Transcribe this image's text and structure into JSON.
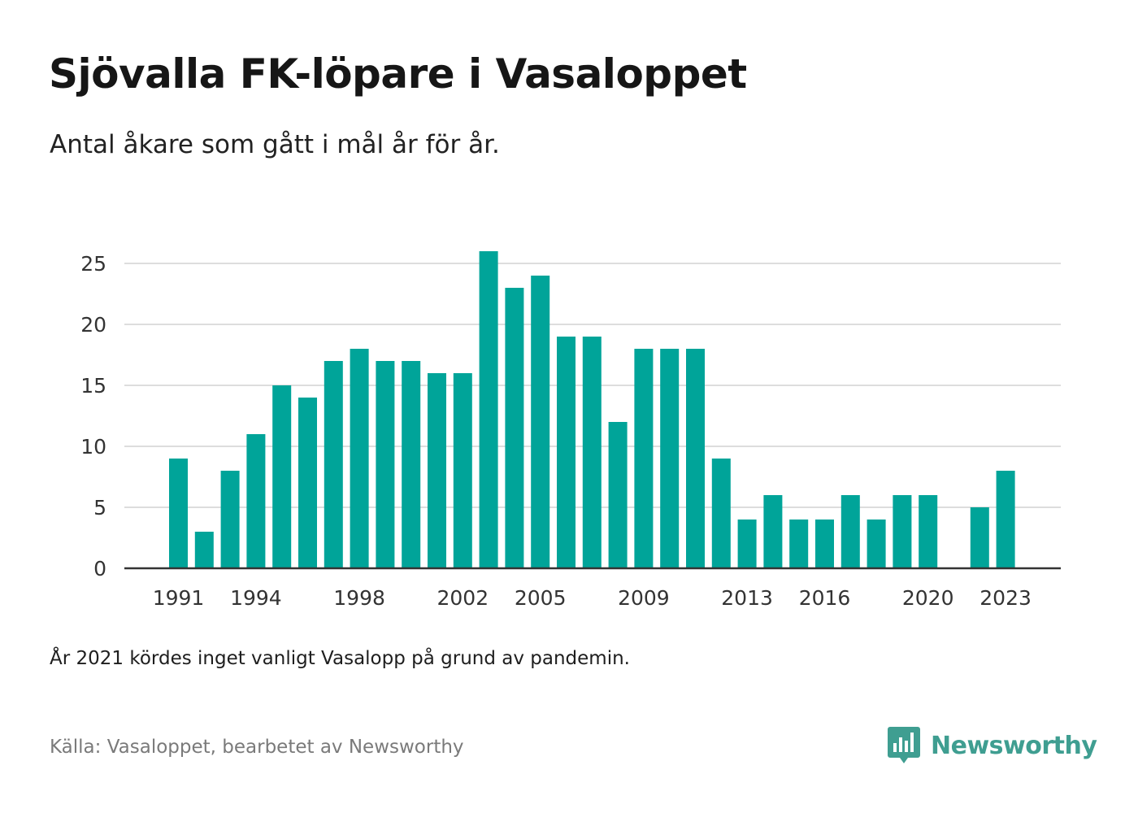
{
  "title": "Sjövalla FK-löpare i Vasaloppet",
  "subtitle": "Antal åkare som gått i mål år för år.",
  "note": "År 2021 kördes inget vanligt Vasalopp på grund av pandemin.",
  "source": "Källa: Vasaloppet, bearbetet av Newsworthy",
  "brand": {
    "name": "Newsworthy",
    "icon": "newsworthy-logo-icon",
    "color": "#3f9e91"
  },
  "colors": {
    "bar": "#00a499",
    "grid": "#dddddd",
    "axis": "#333333"
  },
  "chart_data": {
    "type": "bar",
    "x": [
      1991,
      1992,
      1993,
      1994,
      1995,
      1996,
      1997,
      1998,
      1999,
      2000,
      2001,
      2002,
      2003,
      2004,
      2005,
      2006,
      2007,
      2008,
      2009,
      2010,
      2011,
      2012,
      2013,
      2014,
      2015,
      2016,
      2017,
      2018,
      2019,
      2020,
      2021,
      2022,
      2023
    ],
    "values": [
      9,
      3,
      8,
      11,
      15,
      14,
      17,
      18,
      17,
      17,
      16,
      16,
      26,
      23,
      24,
      19,
      19,
      12,
      18,
      18,
      18,
      9,
      4,
      6,
      4,
      4,
      6,
      4,
      6,
      6,
      null,
      5,
      8
    ],
    "x_ticks": [
      "1991",
      "1994",
      "1998",
      "2002",
      "2005",
      "2009",
      "2013",
      "2016",
      "2020",
      "2023"
    ],
    "y_ticks": [
      0,
      5,
      10,
      15,
      20,
      25
    ],
    "ylim": [
      0,
      26
    ],
    "xlabel": "",
    "ylabel": "",
    "grid": true,
    "legend": "none"
  }
}
